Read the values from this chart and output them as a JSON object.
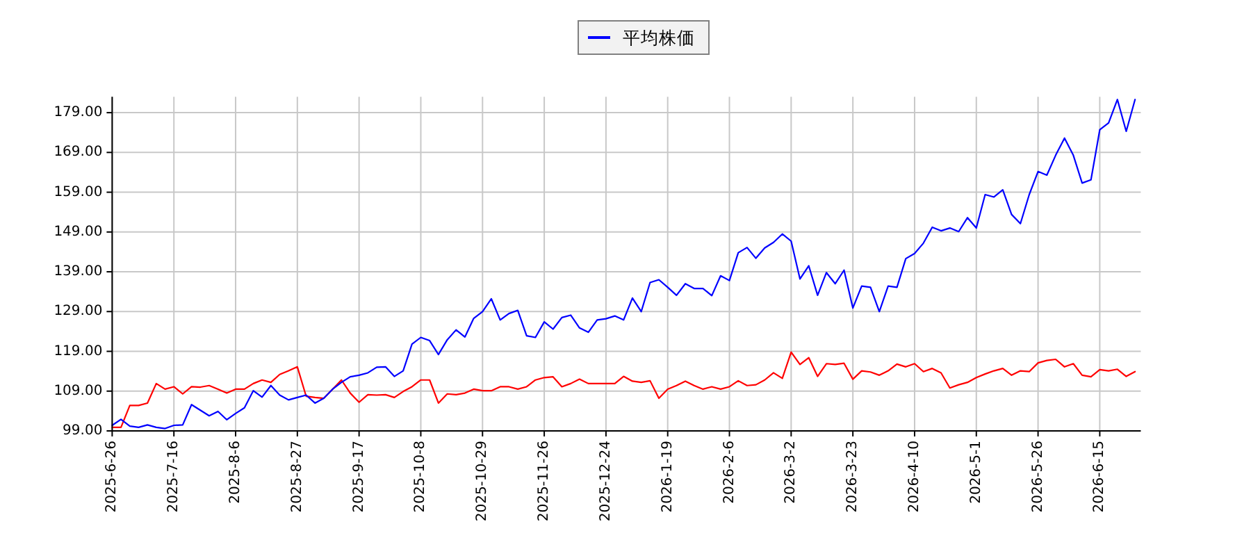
{
  "chart_data": {
    "type": "line",
    "ylim": [
      99,
      183
    ],
    "categories": [
      "2025-6-26",
      null,
      null,
      null,
      null,
      null,
      null,
      "2025-7-16",
      null,
      null,
      null,
      null,
      null,
      null,
      "2025-8-6",
      null,
      null,
      null,
      null,
      null,
      null,
      "2025-8-27",
      null,
      null,
      null,
      null,
      null,
      null,
      "2025-9-17",
      null,
      null,
      null,
      null,
      null,
      null,
      "2025-10-8",
      null,
      null,
      null,
      null,
      null,
      null,
      "2025-10-29",
      null,
      null,
      null,
      null,
      null,
      null,
      "2025-11-26",
      null,
      null,
      null,
      null,
      null,
      null,
      "2025-12-24",
      null,
      null,
      null,
      null,
      null,
      null,
      "2026-1-19",
      null,
      null,
      null,
      null,
      null,
      null,
      "2026-2-6",
      null,
      null,
      null,
      null,
      null,
      null,
      "2026-3-2",
      null,
      null,
      null,
      null,
      null,
      null,
      "2026-3-23",
      null,
      null,
      null,
      null,
      null,
      null,
      "2026-4-10",
      null,
      null,
      null,
      null,
      null,
      null,
      "2026-5-1",
      null,
      null,
      null,
      null,
      null,
      null,
      "2026-5-26",
      null,
      null,
      null,
      null,
      null,
      null,
      "2026-6-15",
      null,
      null,
      null,
      null
    ],
    "yticks": [
      {
        "value": 99,
        "label": "99.00"
      },
      {
        "value": 109,
        "label": "109.00"
      },
      {
        "value": 119,
        "label": "119.00"
      },
      {
        "value": 129,
        "label": "129.00"
      },
      {
        "value": 139,
        "label": "139.00"
      },
      {
        "value": 149,
        "label": "149.00"
      },
      {
        "value": 159,
        "label": "159.00"
      },
      {
        "value": 169,
        "label": "169.00"
      },
      {
        "value": 179,
        "label": "179.00"
      }
    ],
    "grid": true,
    "legend": "top",
    "series": [
      {
        "color": "#ff0000",
        "values": [
          99.9,
          99.9,
          105.4,
          105.4,
          106.0,
          110.9,
          109.5,
          110.1,
          108.3,
          110.1,
          110.0,
          110.4,
          109.5,
          108.5,
          109.5,
          109.5,
          110.9,
          111.8,
          111.2,
          113.2,
          114.1,
          115.1,
          107.7,
          107.4,
          107.2,
          109.5,
          111.8,
          108.5,
          106.2,
          108.1,
          108.0,
          108.1,
          107.4,
          108.9,
          110.1,
          111.8,
          111.8,
          106.0,
          108.3,
          108.1,
          108.5,
          109.5,
          109.1,
          109.1,
          110.1,
          110.1,
          109.5,
          110.1,
          111.8,
          112.4,
          112.6,
          110.1,
          110.9,
          112.0,
          110.9,
          110.9,
          110.9,
          110.9,
          112.7,
          111.5,
          111.2,
          111.6,
          107.2,
          109.5,
          110.4,
          111.5,
          110.4,
          109.5,
          110.1,
          109.5,
          110.1,
          111.6,
          110.4,
          110.6,
          111.8,
          113.6,
          112.2,
          118.8,
          115.7,
          117.4,
          112.7,
          115.9,
          115.7,
          116.0,
          112.0,
          114.1,
          113.8,
          113.0,
          114.1,
          115.8,
          115.1,
          115.9,
          113.9,
          114.7,
          113.6,
          109.8,
          110.6,
          111.2,
          112.4,
          113.3,
          114.1,
          114.7,
          113.0,
          114.1,
          113.9,
          116.1,
          116.7,
          117.0,
          115.1,
          115.9,
          113.0,
          112.6,
          114.4,
          114.1,
          114.5,
          112.7,
          113.9
        ]
      },
      {
        "name": "平均株価",
        "color": "#0000ff",
        "values": [
          100.4,
          101.9,
          100.2,
          99.9,
          100.5,
          99.9,
          99.6,
          100.4,
          100.5,
          105.6,
          104.2,
          102.8,
          103.9,
          101.8,
          103.4,
          104.8,
          109.1,
          107.5,
          110.4,
          108.0,
          106.8,
          107.4,
          108.0,
          106.0,
          107.2,
          109.5,
          111.2,
          112.6,
          113.0,
          113.6,
          115.0,
          115.1,
          112.7,
          114.1,
          120.8,
          122.5,
          121.7,
          118.2,
          121.9,
          124.4,
          122.6,
          127.3,
          129.0,
          132.2,
          126.9,
          128.5,
          129.3,
          122.9,
          122.5,
          126.4,
          124.6,
          127.5,
          128.1,
          124.9,
          123.8,
          126.9,
          127.2,
          127.9,
          126.9,
          132.4,
          129.0,
          136.3,
          137.0,
          135.1,
          133.1,
          136.0,
          134.8,
          134.8,
          133.0,
          138.0,
          136.8,
          143.8,
          145.1,
          142.4,
          145.0,
          146.4,
          148.5,
          146.7,
          137.2,
          140.5,
          133.1,
          138.8,
          136.0,
          139.4,
          129.9,
          135.4,
          135.1,
          129.0,
          135.4,
          135.1,
          142.3,
          143.6,
          146.2,
          150.2,
          149.3,
          150.0,
          149.1,
          152.6,
          150.0,
          158.4,
          157.8,
          159.6,
          153.4,
          151.1,
          158.4,
          164.2,
          163.3,
          168.3,
          172.6,
          168.3,
          161.3,
          162.1,
          174.7,
          176.4,
          182.3,
          174.3,
          182.3
        ]
      }
    ]
  }
}
